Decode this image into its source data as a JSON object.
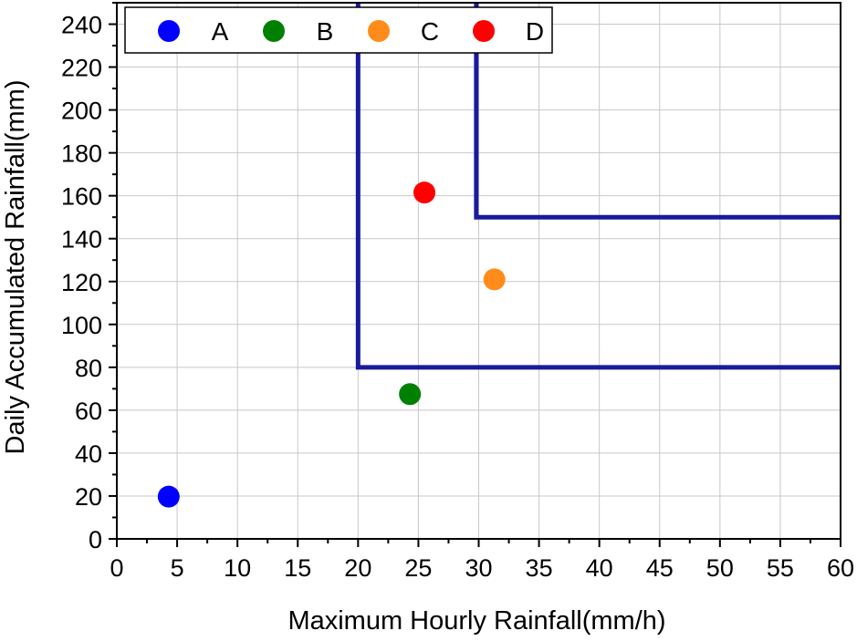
{
  "chart_data": {
    "type": "scatter",
    "title": "",
    "xlabel": "Maximum Hourly Rainfall(mm/h)",
    "ylabel": "Daily Accumulated Rainfall(mm)",
    "xlim": [
      0,
      60
    ],
    "ylim": [
      0,
      250
    ],
    "x_ticks": [
      0,
      5,
      10,
      15,
      20,
      25,
      30,
      35,
      40,
      45,
      50,
      55,
      60
    ],
    "y_ticks": [
      0,
      20,
      40,
      60,
      80,
      100,
      120,
      140,
      160,
      180,
      200,
      220,
      240
    ],
    "grid": true,
    "legend_position": "top-left",
    "series": [
      {
        "name": "A",
        "color": "#0000ff",
        "points": [
          {
            "x": 4.3,
            "y": 19.7
          }
        ]
      },
      {
        "name": "B",
        "color": "#008000",
        "points": [
          {
            "x": 24.3,
            "y": 67.5
          }
        ]
      },
      {
        "name": "C",
        "color": "#ff8c1a",
        "points": [
          {
            "x": 31.3,
            "y": 121
          }
        ]
      },
      {
        "name": "D",
        "color": "#ff0000",
        "points": [
          {
            "x": 25.5,
            "y": 161.5
          }
        ]
      }
    ],
    "threshold_lines": [
      {
        "color": "#1a1a9e",
        "points": [
          {
            "x": 20,
            "y": 250
          },
          {
            "x": 20,
            "y": 80
          },
          {
            "x": 60,
            "y": 80
          }
        ]
      },
      {
        "color": "#1a1a9e",
        "points": [
          {
            "x": 29.8,
            "y": 250
          },
          {
            "x": 29.8,
            "y": 150
          },
          {
            "x": 60,
            "y": 150
          }
        ]
      }
    ]
  }
}
